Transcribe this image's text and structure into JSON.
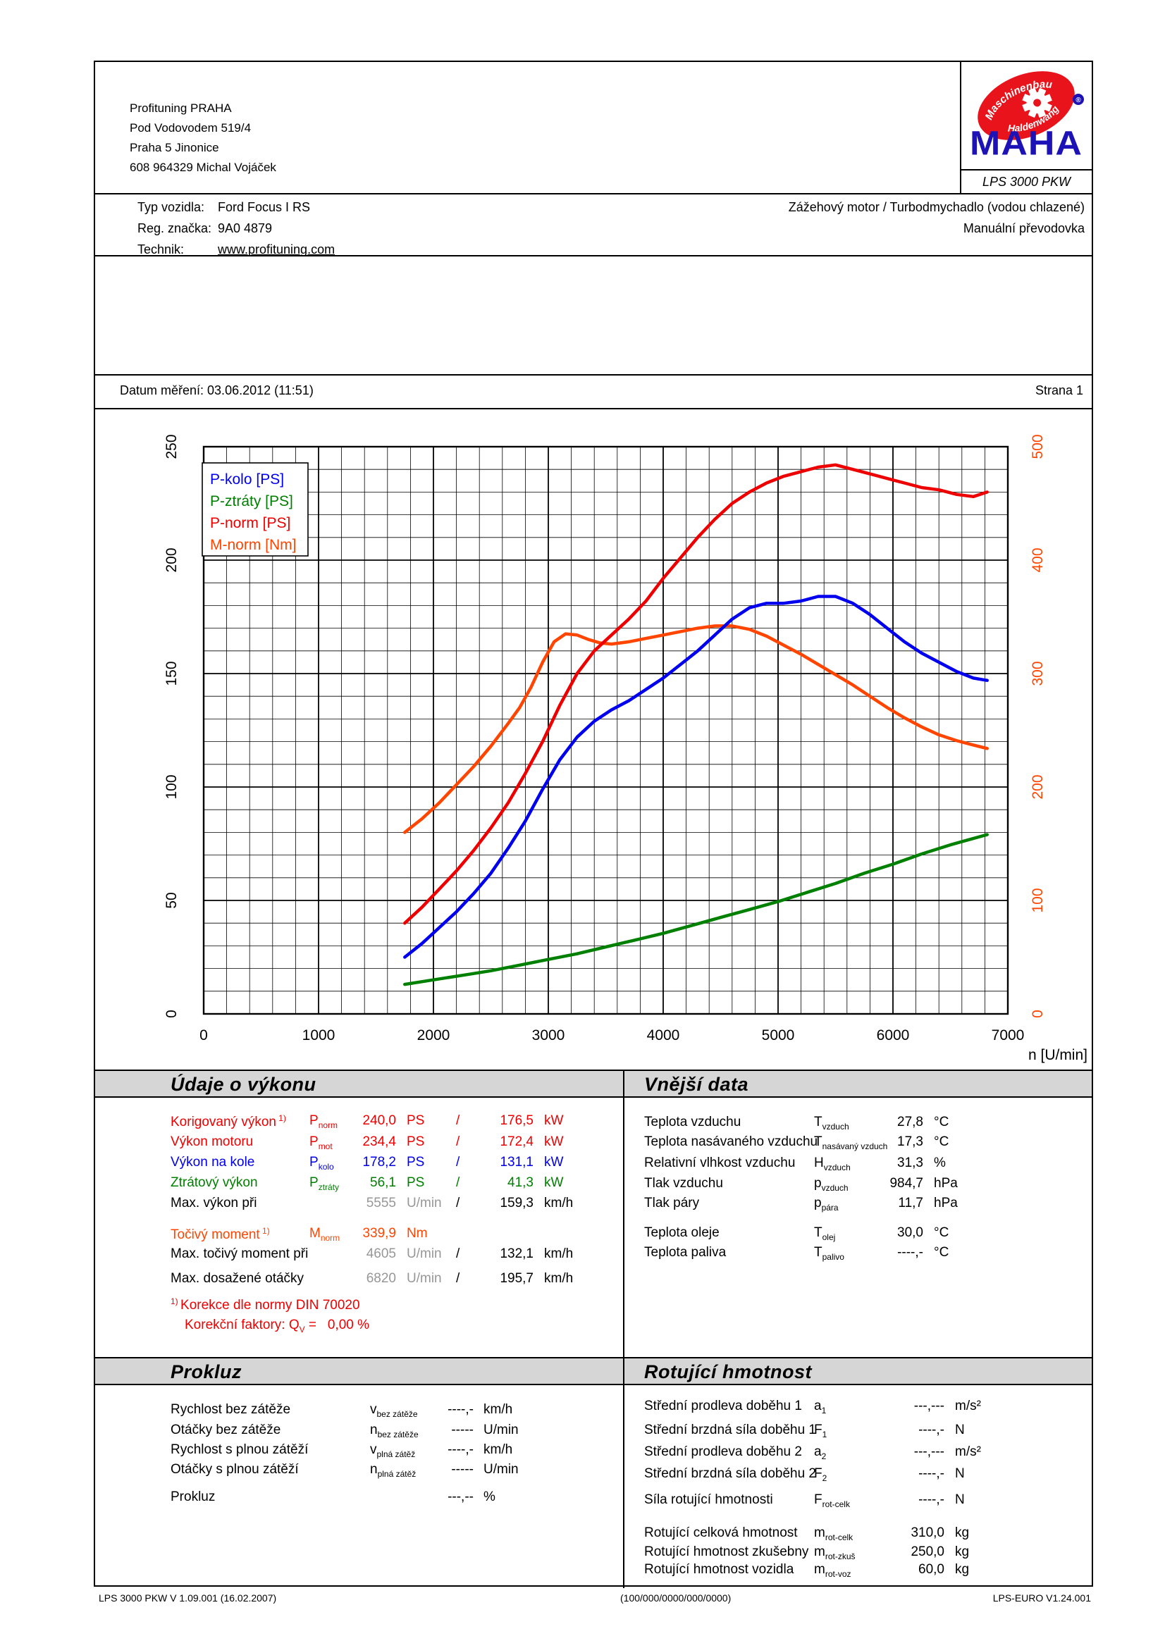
{
  "header": {
    "company_lines": [
      "Profituning PRAHA",
      "Pod Vodovodem 519/4",
      "Praha 5 Jinonice",
      "608 964329 Michal Vojáček"
    ],
    "logo": {
      "arc_top": "Maschinenbau",
      "arc_bottom": "Haldenwang",
      "brand": "MAHA",
      "registered": "®",
      "device": "LPS 3000 PKW",
      "red": "#e8131b",
      "blue": "#1d12b5"
    }
  },
  "vehicle": {
    "rows": [
      {
        "label": "Typ vozidla:",
        "value": "Ford Focus I RS"
      },
      {
        "label": "Reg. značka:",
        "value": "9A0 4879"
      },
      {
        "label": "Technik:",
        "value": "www.profituning.com"
      }
    ],
    "right_lines": [
      "Zážehový motor / Turbodmychadlo (vodou chlazené)",
      "Manuální převodovka"
    ]
  },
  "datebar": {
    "date_label": "Datum měření: 03.06.2012 (11:51)",
    "page_label": "Strana 1"
  },
  "chart_data": {
    "type": "line",
    "xlabel": "n [U/min]",
    "x_min": 0,
    "x_max": 7000,
    "x_ticks": [
      0,
      1000,
      2000,
      3000,
      4000,
      5000,
      6000,
      7000
    ],
    "x_minor_step": 200,
    "y_left": {
      "min": 0,
      "max": 250,
      "ticks": [
        0,
        50,
        100,
        150,
        200,
        250
      ],
      "minor_step": 10,
      "color": "#000000"
    },
    "y_right": {
      "min": 0,
      "max": 500,
      "ticks": [
        0,
        100,
        200,
        300,
        400,
        500
      ],
      "color": "#ff4500"
    },
    "grid": "on",
    "legend_position": "top-left",
    "legend": [
      {
        "label": "P-kolo [PS]",
        "color": "#0000ee"
      },
      {
        "label": "P-ztráty [PS]",
        "color": "#008000"
      },
      {
        "label": "P-norm [PS]",
        "color": "#ee0000"
      },
      {
        "label": "M-norm [Nm]",
        "color": "#ff4500"
      }
    ],
    "series": [
      {
        "name": "M-norm [Nm]",
        "axis": "right",
        "color": "#ff4500",
        "points": [
          [
            1750,
            160
          ],
          [
            1900,
            172
          ],
          [
            2050,
            186
          ],
          [
            2200,
            202
          ],
          [
            2350,
            218
          ],
          [
            2500,
            236
          ],
          [
            2650,
            256
          ],
          [
            2750,
            270
          ],
          [
            2850,
            288
          ],
          [
            2950,
            310
          ],
          [
            3050,
            328
          ],
          [
            3150,
            335
          ],
          [
            3250,
            334
          ],
          [
            3350,
            330
          ],
          [
            3450,
            327
          ],
          [
            3550,
            326
          ],
          [
            3700,
            328
          ],
          [
            3850,
            331
          ],
          [
            4000,
            334
          ],
          [
            4150,
            337
          ],
          [
            4300,
            340
          ],
          [
            4450,
            342
          ],
          [
            4600,
            342
          ],
          [
            4750,
            339
          ],
          [
            4900,
            333
          ],
          [
            5050,
            325
          ],
          [
            5200,
            317
          ],
          [
            5350,
            308
          ],
          [
            5500,
            299
          ],
          [
            5650,
            290
          ],
          [
            5800,
            280
          ],
          [
            5950,
            270
          ],
          [
            6100,
            261
          ],
          [
            6250,
            253
          ],
          [
            6400,
            246
          ],
          [
            6550,
            241
          ],
          [
            6700,
            237
          ],
          [
            6820,
            234
          ]
        ]
      },
      {
        "name": "P-norm [PS]",
        "axis": "left",
        "color": "#ee0000",
        "points": [
          [
            1750,
            40
          ],
          [
            1900,
            47
          ],
          [
            2050,
            55
          ],
          [
            2200,
            63
          ],
          [
            2350,
            72
          ],
          [
            2500,
            82
          ],
          [
            2650,
            93
          ],
          [
            2800,
            106
          ],
          [
            2950,
            120
          ],
          [
            3100,
            136
          ],
          [
            3250,
            150
          ],
          [
            3400,
            160
          ],
          [
            3550,
            167
          ],
          [
            3700,
            174
          ],
          [
            3850,
            182
          ],
          [
            4000,
            192
          ],
          [
            4150,
            201
          ],
          [
            4300,
            210
          ],
          [
            4450,
            218
          ],
          [
            4600,
            225
          ],
          [
            4750,
            230
          ],
          [
            4900,
            234
          ],
          [
            5050,
            237
          ],
          [
            5200,
            239
          ],
          [
            5350,
            241
          ],
          [
            5500,
            242
          ],
          [
            5650,
            240
          ],
          [
            5800,
            238
          ],
          [
            5950,
            236
          ],
          [
            6100,
            234
          ],
          [
            6250,
            232
          ],
          [
            6400,
            231
          ],
          [
            6550,
            229
          ],
          [
            6700,
            228
          ],
          [
            6820,
            230
          ]
        ]
      },
      {
        "name": "P-kolo [PS]",
        "axis": "left",
        "color": "#0000ee",
        "points": [
          [
            1750,
            25
          ],
          [
            1900,
            31
          ],
          [
            2050,
            38
          ],
          [
            2200,
            45
          ],
          [
            2350,
            53
          ],
          [
            2500,
            62
          ],
          [
            2650,
            73
          ],
          [
            2800,
            85
          ],
          [
            2950,
            99
          ],
          [
            3100,
            112
          ],
          [
            3250,
            122
          ],
          [
            3400,
            129
          ],
          [
            3550,
            134
          ],
          [
            3700,
            138
          ],
          [
            3850,
            143
          ],
          [
            4000,
            148
          ],
          [
            4150,
            154
          ],
          [
            4300,
            160
          ],
          [
            4450,
            167
          ],
          [
            4600,
            174
          ],
          [
            4750,
            179
          ],
          [
            4900,
            181
          ],
          [
            5050,
            181
          ],
          [
            5200,
            182
          ],
          [
            5350,
            184
          ],
          [
            5500,
            184
          ],
          [
            5650,
            181
          ],
          [
            5800,
            176
          ],
          [
            5950,
            170
          ],
          [
            6100,
            164
          ],
          [
            6250,
            159
          ],
          [
            6400,
            155
          ],
          [
            6550,
            151
          ],
          [
            6700,
            148
          ],
          [
            6820,
            147
          ]
        ]
      },
      {
        "name": "P-ztráty [PS]",
        "axis": "left",
        "color": "#008000",
        "points": [
          [
            1750,
            13
          ],
          [
            2000,
            15
          ],
          [
            2250,
            17
          ],
          [
            2500,
            19
          ],
          [
            2750,
            21.5
          ],
          [
            3000,
            24
          ],
          [
            3250,
            26.5
          ],
          [
            3500,
            29.5
          ],
          [
            3750,
            32.5
          ],
          [
            4000,
            35.5
          ],
          [
            4250,
            39
          ],
          [
            4500,
            42.5
          ],
          [
            4750,
            46
          ],
          [
            5000,
            49.5
          ],
          [
            5250,
            53.5
          ],
          [
            5500,
            57.5
          ],
          [
            5750,
            62
          ],
          [
            6000,
            66
          ],
          [
            6250,
            70.5
          ],
          [
            6500,
            74.5
          ],
          [
            6820,
            79
          ]
        ]
      }
    ]
  },
  "sections": {
    "performance": {
      "title": "Údaje o výkonu",
      "rows": [
        {
          "label": "Korigovaný výkon",
          "sup": "1)",
          "sym": "P",
          "sub": "norm",
          "v1": "240,0",
          "u1": "PS",
          "slash": "/",
          "v2": "176,5",
          "u2": "kW",
          "color": "c-red",
          "gray1": false
        },
        {
          "label": "Výkon motoru",
          "sup": "",
          "sym": "P",
          "sub": "mot",
          "v1": "234,4",
          "u1": "PS",
          "slash": "/",
          "v2": "172,4",
          "u2": "kW",
          "color": "c-red",
          "gray1": false
        },
        {
          "label": "Výkon na kole",
          "sup": "",
          "sym": "P",
          "sub": "kolo",
          "v1": "178,2",
          "u1": "PS",
          "slash": "/",
          "v2": "131,1",
          "u2": "kW",
          "color": "c-blue",
          "gray1": false
        },
        {
          "label": "Ztrátový výkon",
          "sup": "",
          "sym": "P",
          "sub": "ztráty",
          "v1": "56,1",
          "u1": "PS",
          "slash": "/",
          "v2": "41,3",
          "u2": "kW",
          "color": "c-green",
          "gray1": false
        },
        {
          "label": "Max. výkon při",
          "sup": "",
          "sym": "",
          "sub": "",
          "v1": "5555",
          "u1": "U/min",
          "slash": "/",
          "v2": "159,3",
          "u2": "km/h",
          "color": "c-black",
          "gray1": true
        },
        {
          "label": "Točivý moment",
          "sup": "1)",
          "sym": "M",
          "sub": "norm",
          "v1": "339,9",
          "u1": "Nm",
          "slash": "",
          "v2": "",
          "u2": "",
          "color": "c-orange",
          "gray1": false
        },
        {
          "label": "Max. točivý moment při",
          "sup": "",
          "sym": "",
          "sub": "",
          "v1": "4605",
          "u1": "U/min",
          "slash": "/",
          "v2": "132,1",
          "u2": "km/h",
          "color": "c-black",
          "gray1": true
        },
        {
          "label": "Max. dosažené otáčky",
          "sup": "",
          "sym": "",
          "sub": "",
          "v1": "6820",
          "u1": "U/min",
          "slash": "/",
          "v2": "195,7",
          "u2": "km/h",
          "color": "c-black",
          "gray1": true
        }
      ],
      "note1_sup": "1)",
      "note1": "Korekce dle normy DIN 70020",
      "note2_pre": "Korekční faktory: Q",
      "note2_sub": "V",
      "note2_post": " =   0,00 %"
    },
    "external": {
      "title": "Vnější data",
      "rows": [
        {
          "label": "Teplota vzduchu",
          "sym": "T",
          "sub": "vzduch",
          "v": "27,8",
          "u": "°C"
        },
        {
          "label": "Teplota nasávaného vzduchu",
          "sym": "T",
          "sub": "nasávaný vzduch",
          "v": "17,3",
          "u": "°C"
        },
        {
          "label": "Relativní vlhkost vzduchu",
          "sym": "H",
          "sub": "vzduch",
          "v": "31,3",
          "u": "%"
        },
        {
          "label": "Tlak vzduchu",
          "sym": "p",
          "sub": "vzduch",
          "v": "984,7",
          "u": "hPa"
        },
        {
          "label": "Tlak páry",
          "sym": "p",
          "sub": "pára",
          "v": "11,7",
          "u": "hPa"
        },
        {
          "label": "Teplota oleje",
          "sym": "T",
          "sub": "olej",
          "v": "30,0",
          "u": "°C"
        },
        {
          "label": "Teplota paliva",
          "sym": "T",
          "sub": "palivo",
          "v": "----,-",
          "u": "°C"
        }
      ]
    },
    "slip": {
      "title": "Prokluz",
      "rows": [
        {
          "label": "Rychlost bez zátěže",
          "sym": "v",
          "sub": "bez zátěže",
          "v": "----,-",
          "u": "km/h"
        },
        {
          "label": "Otáčky bez zátěže",
          "sym": "n",
          "sub": "bez zátěže",
          "v": "-----",
          "u": "U/min"
        },
        {
          "label": "Rychlost s plnou zátěží",
          "sym": "v",
          "sub": "plná zátěž",
          "v": "----,-",
          "u": "km/h"
        },
        {
          "label": "Otáčky s plnou zátěží",
          "sym": "n",
          "sub": "plná zátěž",
          "v": "-----",
          "u": "U/min"
        },
        {
          "label": "Prokluz",
          "sym": "",
          "sub": "",
          "v": "---,--",
          "u": "%"
        }
      ]
    },
    "rotating": {
      "title": "Rotující hmotnost",
      "rows": [
        {
          "label": "Střední prodleva doběhu 1",
          "sym": "a",
          "sub": "1",
          "v": "---,---",
          "u": "m/s²"
        },
        {
          "label": "Střední brzdná síla doběhu 1",
          "sym": "F",
          "sub": "1",
          "v": "----,-",
          "u": "N"
        },
        {
          "label": "Střední prodleva doběhu 2",
          "sym": "a",
          "sub": "2",
          "v": "---,---",
          "u": "m/s²"
        },
        {
          "label": "Střední brzdná síla doběhu 2",
          "sym": "F",
          "sub": "2",
          "v": "----,-",
          "u": "N"
        },
        {
          "label": "Síla rotující hmotnosti",
          "sym": "F",
          "sub": "rot-celk",
          "v": "----,-",
          "u": "N"
        },
        {
          "label": "Rotující celková hmotnost",
          "sym": "m",
          "sub": "rot-celk",
          "v": "310,0",
          "u": "kg"
        },
        {
          "label": "Rotující hmotnost zkušebny",
          "sym": "m",
          "sub": "rot-zkuš",
          "v": "250,0",
          "u": "kg"
        },
        {
          "label": "Rotující hmotnost vozidla",
          "sym": "m",
          "sub": "rot-voz",
          "v": "60,0",
          "u": "kg"
        }
      ]
    }
  },
  "footer": {
    "left": "LPS 3000 PKW V 1.09.001 (16.02.2007)",
    "center": "(100/000/0000/000/0000)",
    "right": "LPS-EURO V1.24.001"
  }
}
